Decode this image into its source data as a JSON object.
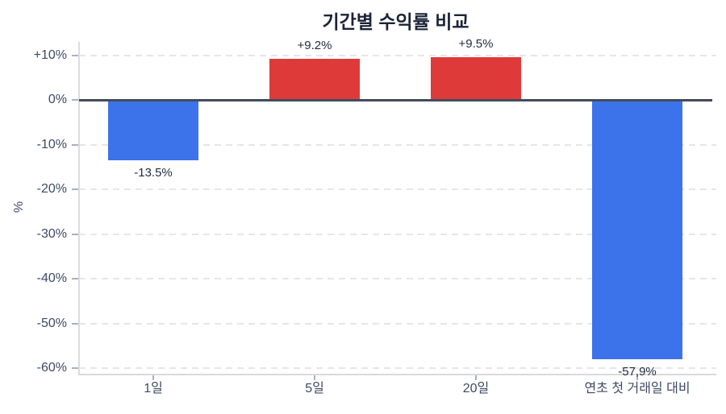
{
  "chart_data": {
    "type": "bar",
    "title": "기간별 수익률 비교",
    "xlabel": "",
    "ylabel": "%",
    "categories": [
      "1일",
      "5일",
      "20일",
      "연초 첫 거래일 대비"
    ],
    "values": [
      -13.5,
      9.2,
      9.5,
      -57.9
    ],
    "bar_labels": [
      "-13.5%",
      "+9.2%",
      "+9.5%",
      "-57,9%"
    ],
    "yticks": [
      10,
      0,
      -10,
      -20,
      -30,
      -40,
      -50,
      -60
    ],
    "ytick_labels": [
      "+10%",
      "0%",
      "-10%",
      "-20%",
      "-30%",
      "-40%",
      "-50%",
      "-60%"
    ],
    "ylim": [
      -60,
      10
    ],
    "grid": "horizontal-dashed",
    "legend": "none",
    "colors": {
      "positive": "#df3a3a",
      "negative": "#3c73eb",
      "title_text": "#1b2437",
      "tick_text": "#3e4a64",
      "gridline": "#e6e6ea",
      "zero_line": "#414b5c",
      "axis_line": "#d9dade"
    }
  }
}
